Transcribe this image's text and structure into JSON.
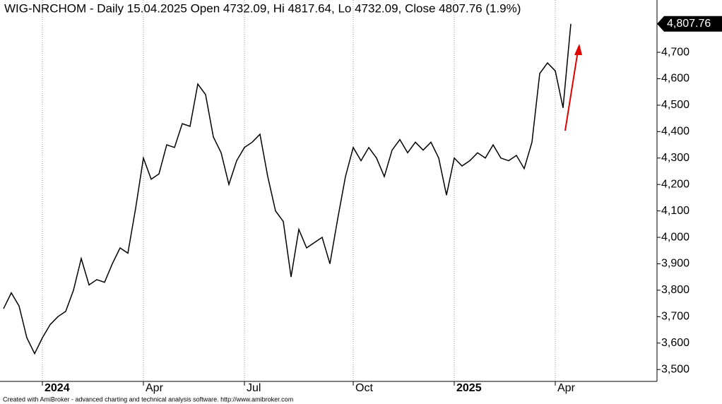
{
  "chart_data": {
    "type": "line",
    "title": "WIG-NRCHOM - Daily 15.04.2025 Open 4732.09, Hi 4817.64, Lo 4732.09, Close 4807.76 (1.9%)",
    "footer": "Created with AmiBroker - advanced charting and technical analysis software. http://www.amibroker.com",
    "categories": [
      null,
      null,
      null,
      null,
      null,
      "2024",
      null,
      null,
      null,
      null,
      null,
      null,
      null,
      null,
      null,
      null,
      null,
      null,
      "Apr",
      null,
      null,
      null,
      null,
      null,
      null,
      null,
      null,
      null,
      null,
      null,
      null,
      "Jul",
      null,
      null,
      null,
      null,
      null,
      null,
      null,
      null,
      null,
      null,
      null,
      null,
      null,
      "Oct",
      null,
      null,
      null,
      null,
      null,
      null,
      null,
      null,
      null,
      null,
      null,
      null,
      "2025",
      null,
      null,
      null,
      null,
      null,
      null,
      null,
      null,
      null,
      null,
      null,
      null,
      "Apr",
      null,
      null
    ],
    "series": [
      {
        "name": "WIG-NRCHOM",
        "color": "#000000",
        "values": [
          3730,
          3790,
          3740,
          3620,
          3560,
          3620,
          3670,
          3700,
          3720,
          3800,
          3920,
          3820,
          3840,
          3830,
          3900,
          3960,
          3940,
          4110,
          4300,
          4220,
          4240,
          4350,
          4340,
          4430,
          4420,
          4580,
          4540,
          4380,
          4320,
          4200,
          4290,
          4340,
          4360,
          4390,
          4230,
          4100,
          4060,
          3850,
          4030,
          3960,
          3980,
          4000,
          3900,
          4070,
          4230,
          4340,
          4290,
          4340,
          4300,
          4230,
          4330,
          4370,
          4320,
          4360,
          4330,
          4360,
          4300,
          4160,
          4300,
          4270,
          4290,
          4320,
          4300,
          4350,
          4300,
          4290,
          4310,
          4260,
          4360,
          4620,
          4660,
          4630,
          4490,
          4807.76
        ]
      }
    ],
    "last_price": {
      "value": 4807.76,
      "label": "4,807.76"
    },
    "ylim": [
      3455,
      4898
    ],
    "yticks": [
      {
        "value": 3500,
        "label": "3,500"
      },
      {
        "value": 3600,
        "label": "3,600"
      },
      {
        "value": 3700,
        "label": "3,700"
      },
      {
        "value": 3800,
        "label": "3,800"
      },
      {
        "value": 3900,
        "label": "3,900"
      },
      {
        "value": 4000,
        "label": "4,000"
      },
      {
        "value": 4100,
        "label": "4,100"
      },
      {
        "value": 4200,
        "label": "4,200"
      },
      {
        "value": 4300,
        "label": "4,300"
      },
      {
        "value": 4400,
        "label": "4,400"
      },
      {
        "value": 4500,
        "label": "4,500"
      },
      {
        "value": 4600,
        "label": "4,600"
      },
      {
        "value": 4700,
        "label": "4,700"
      }
    ],
    "grid": true
  }
}
